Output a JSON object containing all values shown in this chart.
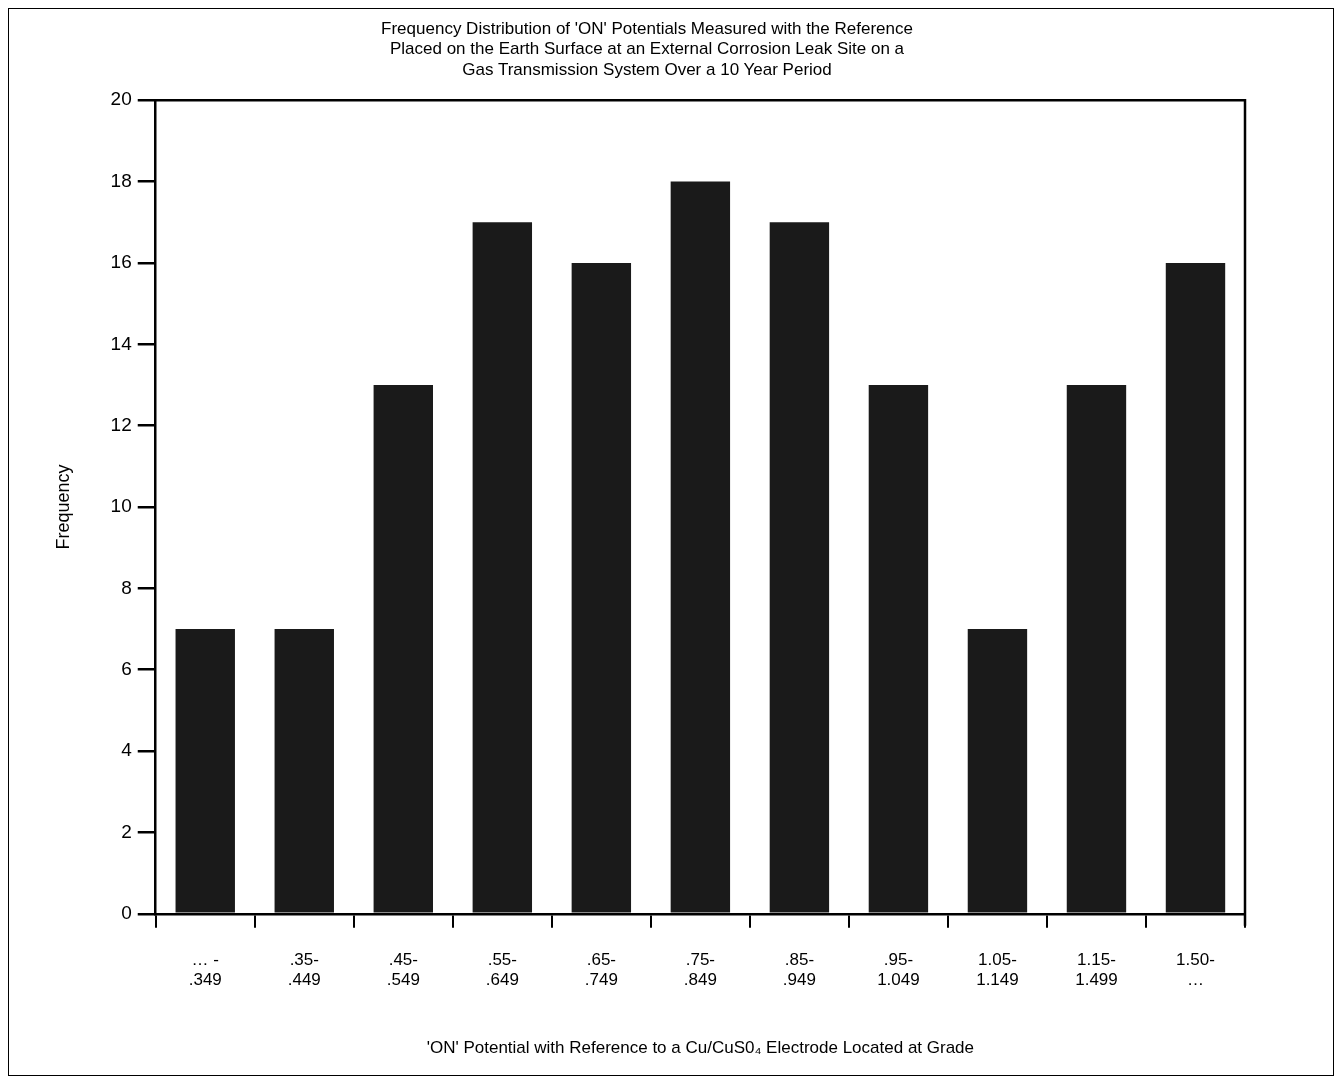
{
  "chart_data": {
    "type": "bar",
    "title": "Frequency Distribution of 'ON' Potentials Measured with the Reference\nPlaced on the Earth Surface at an External Corrosion Leak Site on a\nGas Transmission System Over a 10 Year Period",
    "xlabel": "'ON' Potential with Reference to a Cu/CuS0₄ Electrode Located at Grade",
    "ylabel": "Frequency",
    "categories": [
      "… -\n.349",
      ".35-\n.449",
      ".45-\n.549",
      ".55-\n.649",
      ".65-\n.749",
      ".75-\n.849",
      ".85-\n.949",
      ".95-\n1.049",
      "1.05-\n1.149",
      "1.15-\n1.499",
      "1.50-\n…"
    ],
    "values": [
      7,
      7,
      13,
      17,
      16,
      18,
      17,
      13,
      7,
      13,
      16
    ],
    "color": "#1a1a1a",
    "ylim": [
      0,
      20
    ],
    "yticks": [
      0,
      2,
      4,
      6,
      8,
      10,
      12,
      14,
      16,
      18,
      20
    ],
    "grid": false,
    "legend": false
  }
}
